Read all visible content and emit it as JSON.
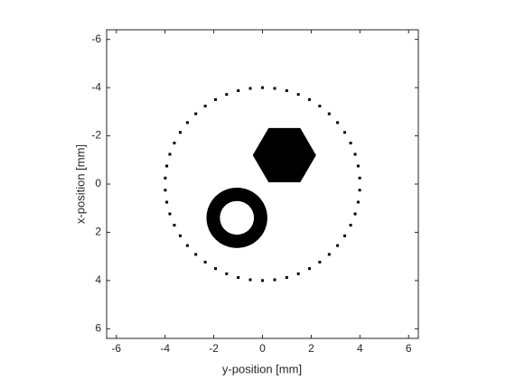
{
  "chart_data": {
    "type": "scatter",
    "xlabel": "y-position [mm]",
    "ylabel": "x-position [mm]",
    "xlim": [
      -6.4,
      6.4
    ],
    "ylim": [
      -6.4,
      6.4
    ],
    "y_reversed": true,
    "xticks": [
      -6,
      -4,
      -2,
      0,
      2,
      4,
      6
    ],
    "yticks": [
      -6,
      -4,
      -2,
      0,
      2,
      4,
      6
    ],
    "sensors": {
      "center": [
        0,
        0
      ],
      "radius": 4,
      "count": 50,
      "color": "#000000"
    },
    "shapes": [
      {
        "kind": "hexagon",
        "center": [
          0.9,
          -1.2
        ],
        "radius": 1.3,
        "color": "#000000"
      },
      {
        "kind": "annulus",
        "center": [
          -1.05,
          1.4
        ],
        "outer_radius": 1.25,
        "inner_radius": 0.7,
        "color": "#000000"
      }
    ]
  }
}
